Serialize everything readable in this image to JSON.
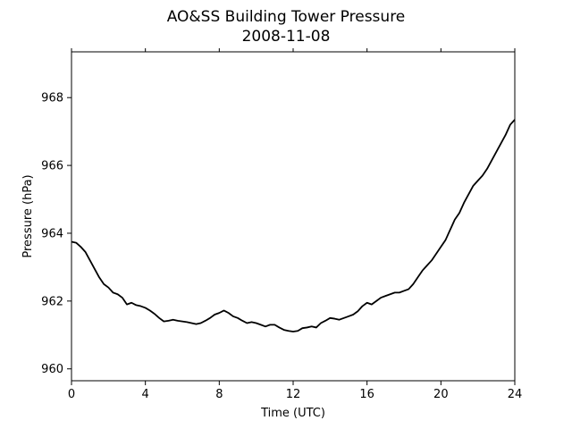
{
  "chart_data": {
    "type": "line",
    "title": "AO&SS Building Tower Pressure",
    "subtitle": "2008-11-08",
    "xlabel": "Time (UTC)",
    "ylabel": "Pressure (hPa)",
    "xlim": [
      0,
      24
    ],
    "ylim": [
      959.65,
      969.35
    ],
    "x_ticks": [
      0,
      4,
      8,
      12,
      16,
      20,
      24
    ],
    "y_ticks": [
      960,
      962,
      964,
      966,
      968
    ],
    "grid": false,
    "legend": "none",
    "line_color": "#000000",
    "series": [
      {
        "x": [
          0,
          0.25,
          0.5,
          0.75,
          1.0,
          1.25,
          1.5,
          1.75,
          2.0,
          2.25,
          2.5,
          2.75,
          3.0,
          3.25,
          3.5,
          3.75,
          4.0,
          4.25,
          4.5,
          4.75,
          5.0,
          5.25,
          5.5,
          5.75,
          6.0,
          6.25,
          6.5,
          6.75,
          7.0,
          7.25,
          7.5,
          7.75,
          8.0,
          8.25,
          8.5,
          8.75,
          9.0,
          9.25,
          9.5,
          9.75,
          10.0,
          10.25,
          10.5,
          10.75,
          11.0,
          11.25,
          11.5,
          11.75,
          12.0,
          12.25,
          12.5,
          12.75,
          13.0,
          13.25,
          13.5,
          13.75,
          14.0,
          14.25,
          14.5,
          14.75,
          15.0,
          15.25,
          15.5,
          15.75,
          16.0,
          16.25,
          16.5,
          16.75,
          17.0,
          17.25,
          17.5,
          17.75,
          18.0,
          18.25,
          18.5,
          18.75,
          19.0,
          19.25,
          19.5,
          19.75,
          20.0,
          20.25,
          20.5,
          20.75,
          21.0,
          21.25,
          21.5,
          21.75,
          22.0,
          22.25,
          22.5,
          22.75,
          23.0,
          23.25,
          23.5,
          23.75,
          24.0
        ],
        "values": [
          963.75,
          963.72,
          963.6,
          963.45,
          963.2,
          962.95,
          962.7,
          962.5,
          962.4,
          962.25,
          962.2,
          962.1,
          961.9,
          961.95,
          961.88,
          961.85,
          961.8,
          961.72,
          961.62,
          961.5,
          961.4,
          961.42,
          961.45,
          961.42,
          961.4,
          961.38,
          961.35,
          961.32,
          961.35,
          961.42,
          961.5,
          961.6,
          961.65,
          961.72,
          961.65,
          961.55,
          961.5,
          961.42,
          961.35,
          961.38,
          961.35,
          961.3,
          961.25,
          961.3,
          961.3,
          961.22,
          961.15,
          961.12,
          961.1,
          961.12,
          961.2,
          961.22,
          961.25,
          961.22,
          961.35,
          961.42,
          961.5,
          961.48,
          961.45,
          961.5,
          961.55,
          961.6,
          961.7,
          961.85,
          961.95,
          961.9,
          962.0,
          962.1,
          962.15,
          962.2,
          962.25,
          962.25,
          962.3,
          962.35,
          962.5,
          962.7,
          962.9,
          963.05,
          963.2,
          963.4,
          963.6,
          963.8,
          964.1,
          964.4,
          964.6,
          964.9,
          965.15,
          965.4,
          965.55,
          965.7,
          965.9,
          966.15,
          966.4,
          966.65,
          966.9,
          967.2,
          967.35
        ]
      }
    ]
  }
}
